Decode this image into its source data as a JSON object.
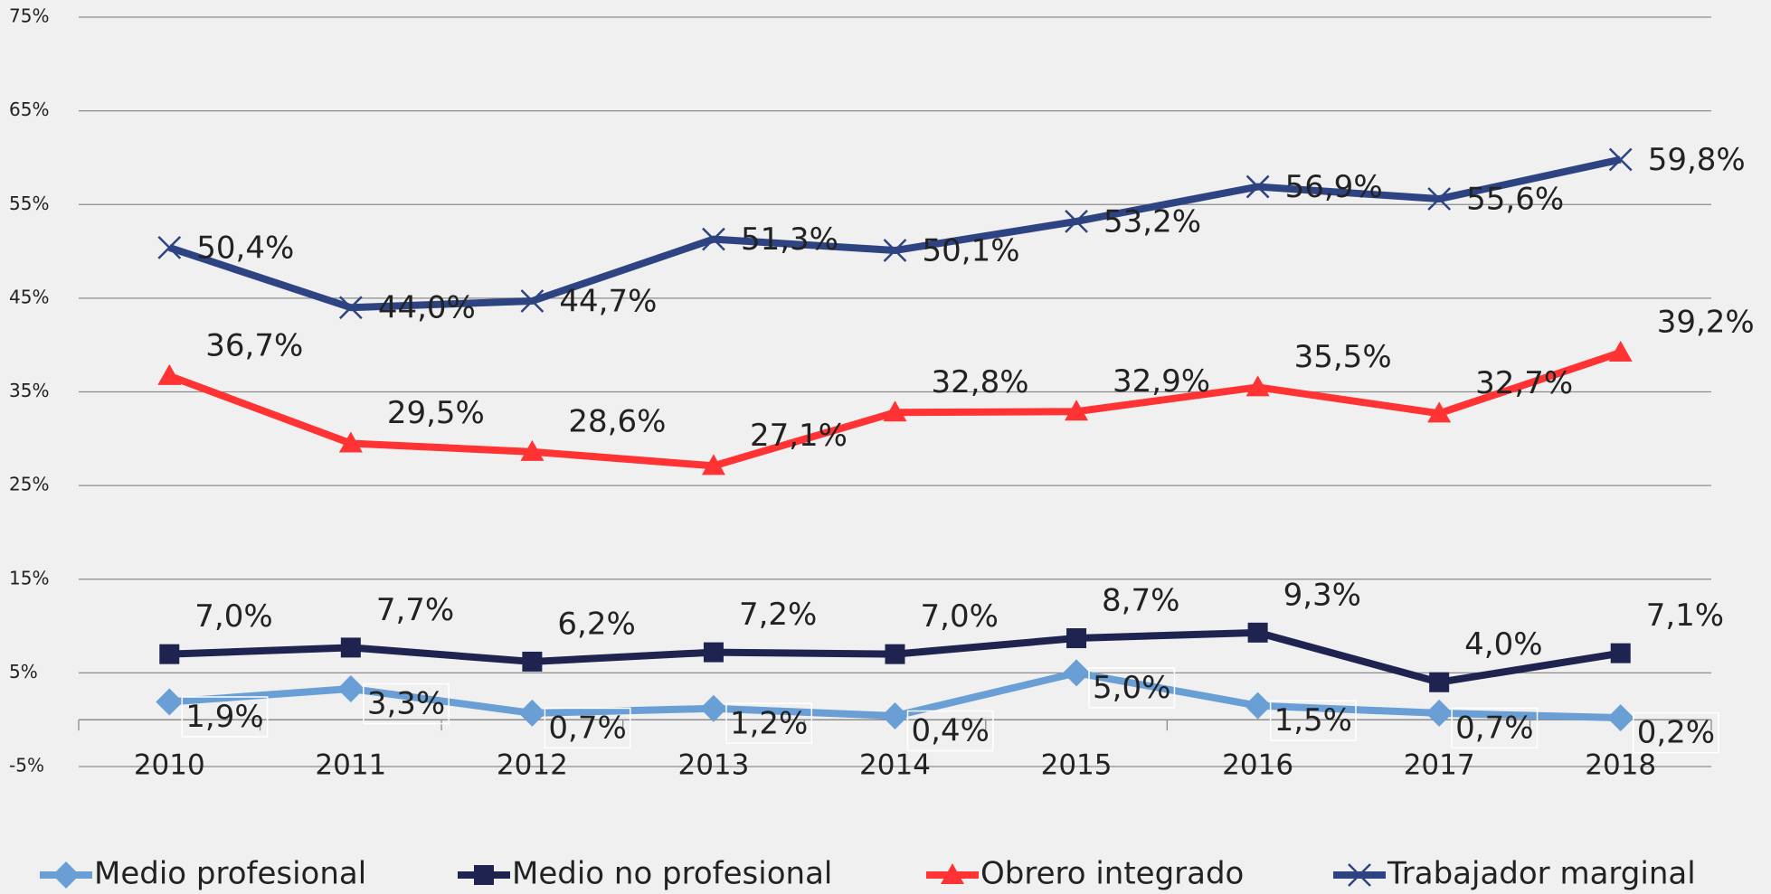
{
  "chart_data": {
    "type": "line",
    "categories": [
      "2010",
      "2011",
      "2012",
      "2013",
      "2014",
      "2015",
      "2016",
      "2017",
      "2018"
    ],
    "ylim": [
      -5,
      75
    ],
    "yticks": [
      {
        "value": -5,
        "label": "-5%"
      },
      {
        "value": 5,
        "label": "5%"
      },
      {
        "value": 15,
        "label": "15%"
      },
      {
        "value": 25,
        "label": "25%"
      },
      {
        "value": 35,
        "label": "35%"
      },
      {
        "value": 45,
        "label": "45%"
      },
      {
        "value": 55,
        "label": "55%"
      },
      {
        "value": 65,
        "label": "65%"
      },
      {
        "value": 75,
        "label": "75%"
      }
    ],
    "grid": true,
    "legend": "bottom",
    "series": [
      {
        "name": "Medio profesional",
        "color": "#6a9fd6",
        "marker": "diamond",
        "values": [
          1.9,
          3.3,
          0.7,
          1.2,
          0.4,
          5.0,
          1.5,
          0.7,
          0.2
        ],
        "value_labels": [
          "1,9%",
          "3,3%",
          "0,7%",
          "1,2%",
          "0,4%",
          "5,0%",
          "1,5%",
          "0,7%",
          "0,2%"
        ]
      },
      {
        "name": "Medio no profesional",
        "color": "#1f2350",
        "marker": "square",
        "values": [
          7.0,
          7.7,
          6.2,
          7.2,
          7.0,
          8.7,
          9.3,
          4.0,
          7.1
        ],
        "value_labels": [
          "7,0%",
          "7,7%",
          "6,2%",
          "7,2%",
          "7,0%",
          "8,7%",
          "9,3%",
          "4,0%",
          "7,1%"
        ]
      },
      {
        "name": "Obrero integrado",
        "color": "#ff3333",
        "marker": "triangle",
        "values": [
          36.7,
          29.5,
          28.6,
          27.1,
          32.8,
          32.9,
          35.5,
          32.7,
          39.2
        ],
        "value_labels": [
          "36,7%",
          "29,5%",
          "28,6%",
          "27,1%",
          "32,8%",
          "32,9%",
          "35,5%",
          "32,7%",
          "39,2%"
        ]
      },
      {
        "name": "Trabajador marginal",
        "color": "#2e4482",
        "marker": "x",
        "values": [
          50.4,
          44.0,
          44.7,
          51.3,
          50.1,
          53.2,
          56.9,
          55.6,
          59.8
        ],
        "value_labels": [
          "50,4%",
          "44,0%",
          "44,7%",
          "51,3%",
          "50,1%",
          "53,2%",
          "56,9%",
          "55,6%",
          "59,8%"
        ]
      }
    ]
  }
}
